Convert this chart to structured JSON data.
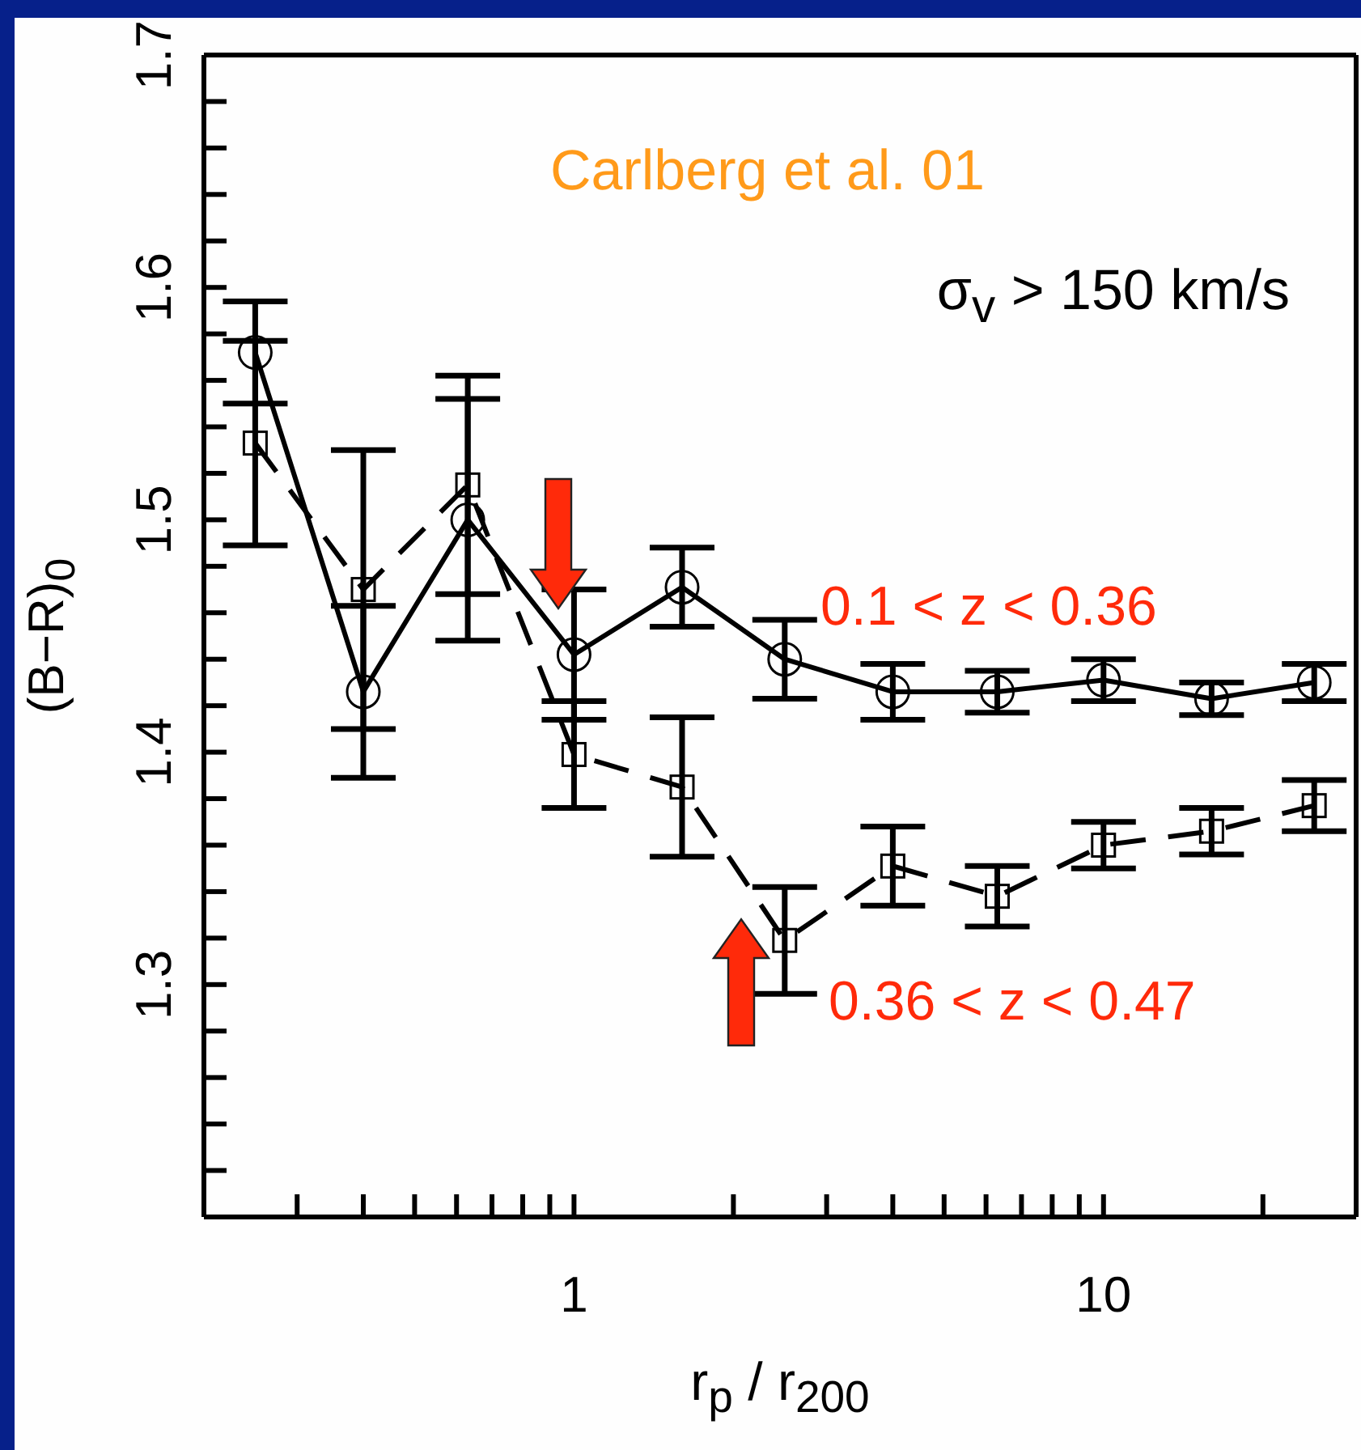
{
  "chart_data": {
    "type": "line",
    "xlabel": "r$_{p}$ / r$_{200}$",
    "ylabel": "(B−R)$_{0}$",
    "annotations": [
      "Carlberg et al. 01",
      "σ$_{v}$ > 150 km/s"
    ],
    "log": "x",
    "x": [
      0.25,
      0.4,
      0.63,
      1,
      1.6,
      2.5,
      4,
      6.3,
      10,
      16,
      25
    ],
    "xlim": [
      0.2,
      30
    ],
    "xticks": [
      {
        "value": 0.3,
        "label": null
      },
      {
        "value": 0.4,
        "label": null
      },
      {
        "value": 0.5,
        "label": null
      },
      {
        "value": 0.6,
        "label": null
      },
      {
        "value": 0.7,
        "label": null
      },
      {
        "value": 0.8,
        "label": null
      },
      {
        "value": 0.9,
        "label": null
      },
      1,
      {
        "value": 2,
        "label": null
      },
      {
        "value": 3,
        "label": null
      },
      {
        "value": 4,
        "label": null
      },
      {
        "value": 5,
        "label": null
      },
      {
        "value": 6,
        "label": null
      },
      {
        "value": 7,
        "label": null
      },
      {
        "value": 8,
        "label": null
      },
      {
        "value": 9,
        "label": null
      },
      10,
      {
        "value": 20,
        "label": null
      }
    ],
    "ylim": [
      1.2,
      1.7
    ],
    "yticks": [
      {
        "value": 1.22,
        "label": null
      },
      {
        "value": 1.24,
        "label": null
      },
      {
        "value": 1.26,
        "label": null
      },
      {
        "value": 1.28,
        "label": null
      },
      1.3,
      {
        "value": 1.32,
        "label": null
      },
      {
        "value": 1.34,
        "label": null
      },
      {
        "value": 1.36,
        "label": null
      },
      {
        "value": 1.38,
        "label": null
      },
      1.4,
      {
        "value": 1.42,
        "label": null
      },
      {
        "value": 1.44,
        "label": null
      },
      {
        "value": 1.46,
        "label": null
      },
      {
        "value": 1.48,
        "label": null
      },
      1.5,
      {
        "value": 1.52,
        "label": null
      },
      {
        "value": 1.54,
        "label": null
      },
      {
        "value": 1.56,
        "label": null
      },
      {
        "value": 1.58,
        "label": null
      },
      1.6,
      {
        "value": 1.62,
        "label": null
      },
      {
        "value": 1.64,
        "label": null
      },
      {
        "value": 1.66,
        "label": null
      },
      {
        "value": 1.68,
        "label": null
      },
      1.7
    ],
    "series": [
      {
        "name": "0.1 < z < 0.36",
        "color": "#000000",
        "marker": "circle",
        "line_style": "solid",
        "values": [
          1.572,
          1.426,
          1.5,
          1.442,
          1.471,
          1.44,
          1.426,
          1.426,
          1.431,
          1.423,
          1.43
        ],
        "errors": [
          0.022,
          0.037,
          0.052,
          0.028,
          0.017,
          0.017,
          0.012,
          0.009,
          0.009,
          0.007,
          0.008
        ]
      },
      {
        "name": "0.36 < z < 0.47",
        "color": "#000000",
        "marker": "square",
        "line_style": "dashed",
        "values": [
          1.533,
          1.47,
          1.515,
          1.399,
          1.385,
          1.319,
          1.351,
          1.338,
          1.36,
          1.366,
          1.377
        ],
        "errors": [
          0.044,
          0.06,
          0.047,
          0.023,
          0.03,
          0.023,
          0.017,
          0.013,
          0.01,
          0.01,
          0.011
        ]
      }
    ]
  }
}
